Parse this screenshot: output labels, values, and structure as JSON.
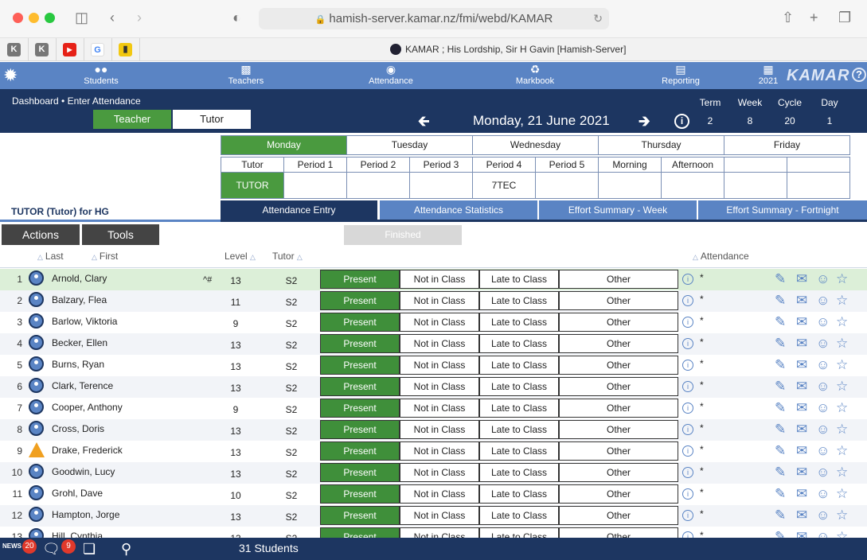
{
  "browser": {
    "url": "hamish-server.kamar.nz/fmi/webd/KAMAR",
    "page_title": "KAMAR ; His Lordship, Sir H Gavin [Hamish-Server]"
  },
  "nav": {
    "items": [
      "Students",
      "Teachers",
      "Attendance",
      "Markbook",
      "Reporting",
      "2021"
    ],
    "brand": "KAMAR",
    "help": "?"
  },
  "header": {
    "breadcrumb": "Dashboard • Enter Attendance",
    "toggle_teacher": "Teacher",
    "toggle_tutor": "Tutor",
    "date": "Monday, 21 June 2021",
    "term_label": "Term",
    "term": "2",
    "week_label": "Week",
    "week": "8",
    "cycle_label": "Cycle",
    "cycle": "20",
    "day_label": "Day",
    "day": "1"
  },
  "days": [
    "Monday",
    "Tuesday",
    "Wednesday",
    "Thursday",
    "Friday"
  ],
  "periods": [
    "Tutor",
    "Period 1",
    "Period 2",
    "Period 3",
    "Period 4",
    "Period 5",
    "Morning",
    "Afternoon",
    "",
    ""
  ],
  "period_classes": [
    "TUTOR",
    "",
    "",
    "",
    "7TEC",
    "",
    "",
    "",
    "",
    ""
  ],
  "tutor_line": "TUTOR   (Tutor)  for HG",
  "stat_tabs": [
    "Attendance Entry",
    "Attendance Statistics",
    "Effort Summary - Week",
    "Effort Summary - Fortnight"
  ],
  "actions_label": "Actions",
  "tools_label": "Tools",
  "finished_label": "Finished",
  "columns": {
    "last": "Last",
    "first": "First",
    "level": "Level",
    "tutor": "Tutor",
    "attendance": "Attendance"
  },
  "buttons": {
    "present": "Present",
    "not_in_class": "Not in Class",
    "late": "Late to Class",
    "other": "Other"
  },
  "students": [
    {
      "n": "1",
      "name": "Arnold, Clary",
      "flag": "^#",
      "level": "13",
      "tutor": "S2"
    },
    {
      "n": "2",
      "name": "Balzary, Flea",
      "flag": "",
      "level": "11",
      "tutor": "S2"
    },
    {
      "n": "3",
      "name": "Barlow, Viktoria",
      "flag": "",
      "level": "9",
      "tutor": "S2"
    },
    {
      "n": "4",
      "name": "Becker, Ellen",
      "flag": "",
      "level": "13",
      "tutor": "S2"
    },
    {
      "n": "5",
      "name": "Burns, Ryan",
      "flag": "",
      "level": "13",
      "tutor": "S2"
    },
    {
      "n": "6",
      "name": "Clark, Terence",
      "flag": "",
      "level": "13",
      "tutor": "S2"
    },
    {
      "n": "7",
      "name": "Cooper, Anthony",
      "flag": "",
      "level": "9",
      "tutor": "S2"
    },
    {
      "n": "8",
      "name": "Cross, Doris",
      "flag": "",
      "level": "13",
      "tutor": "S2"
    },
    {
      "n": "9",
      "name": "Drake, Frederick",
      "flag": "",
      "level": "13",
      "tutor": "S2",
      "warn": true
    },
    {
      "n": "10",
      "name": "Goodwin, Lucy",
      "flag": "",
      "level": "13",
      "tutor": "S2"
    },
    {
      "n": "11",
      "name": "Grohl, Dave",
      "flag": "",
      "level": "10",
      "tutor": "S2"
    },
    {
      "n": "12",
      "name": "Hampton, Jorge",
      "flag": "",
      "level": "13",
      "tutor": "S2"
    },
    {
      "n": "13",
      "name": "Hill, Cynthia",
      "flag": "",
      "level": "13",
      "tutor": "S2"
    }
  ],
  "footer": {
    "count": "31 Students",
    "news_label": "NEWS",
    "news_badge": "20",
    "chat_badge": "9"
  }
}
